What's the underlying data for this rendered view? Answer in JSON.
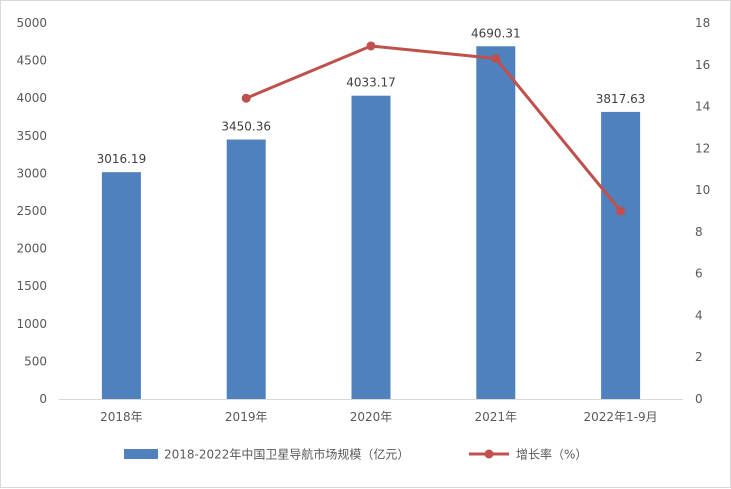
{
  "chart_data": {
    "type": "bar",
    "categories": [
      "2018年",
      "2019年",
      "2020年",
      "2021年",
      "2022年1-9月"
    ],
    "series": [
      {
        "name": "2018-2022年中国卫星导航市场规模（亿元）",
        "type": "bar",
        "axis": "left",
        "values": [
          3016.19,
          3450.36,
          4033.17,
          4690.31,
          3817.63
        ],
        "color": "#4F81BD"
      },
      {
        "name": "增长率（%）",
        "type": "line",
        "axis": "right",
        "values": [
          null,
          14.4,
          16.9,
          16.3,
          9.0
        ],
        "color": "#C0504D"
      }
    ],
    "data_labels": [
      "3016.19",
      "3450.36",
      "4033.17",
      "4690.31",
      "3817.63"
    ],
    "y_left": {
      "min": 0,
      "max": 5000,
      "step": 500,
      "ticks": [
        "0",
        "500",
        "1000",
        "1500",
        "2000",
        "2500",
        "3000",
        "3500",
        "4000",
        "4500",
        "5000"
      ]
    },
    "y_right": {
      "min": 0,
      "max": 18,
      "step": 2,
      "ticks": [
        "0",
        "2",
        "4",
        "6",
        "8",
        "10",
        "12",
        "14",
        "16",
        "18"
      ]
    },
    "grid": false,
    "legend_position": "bottom"
  }
}
